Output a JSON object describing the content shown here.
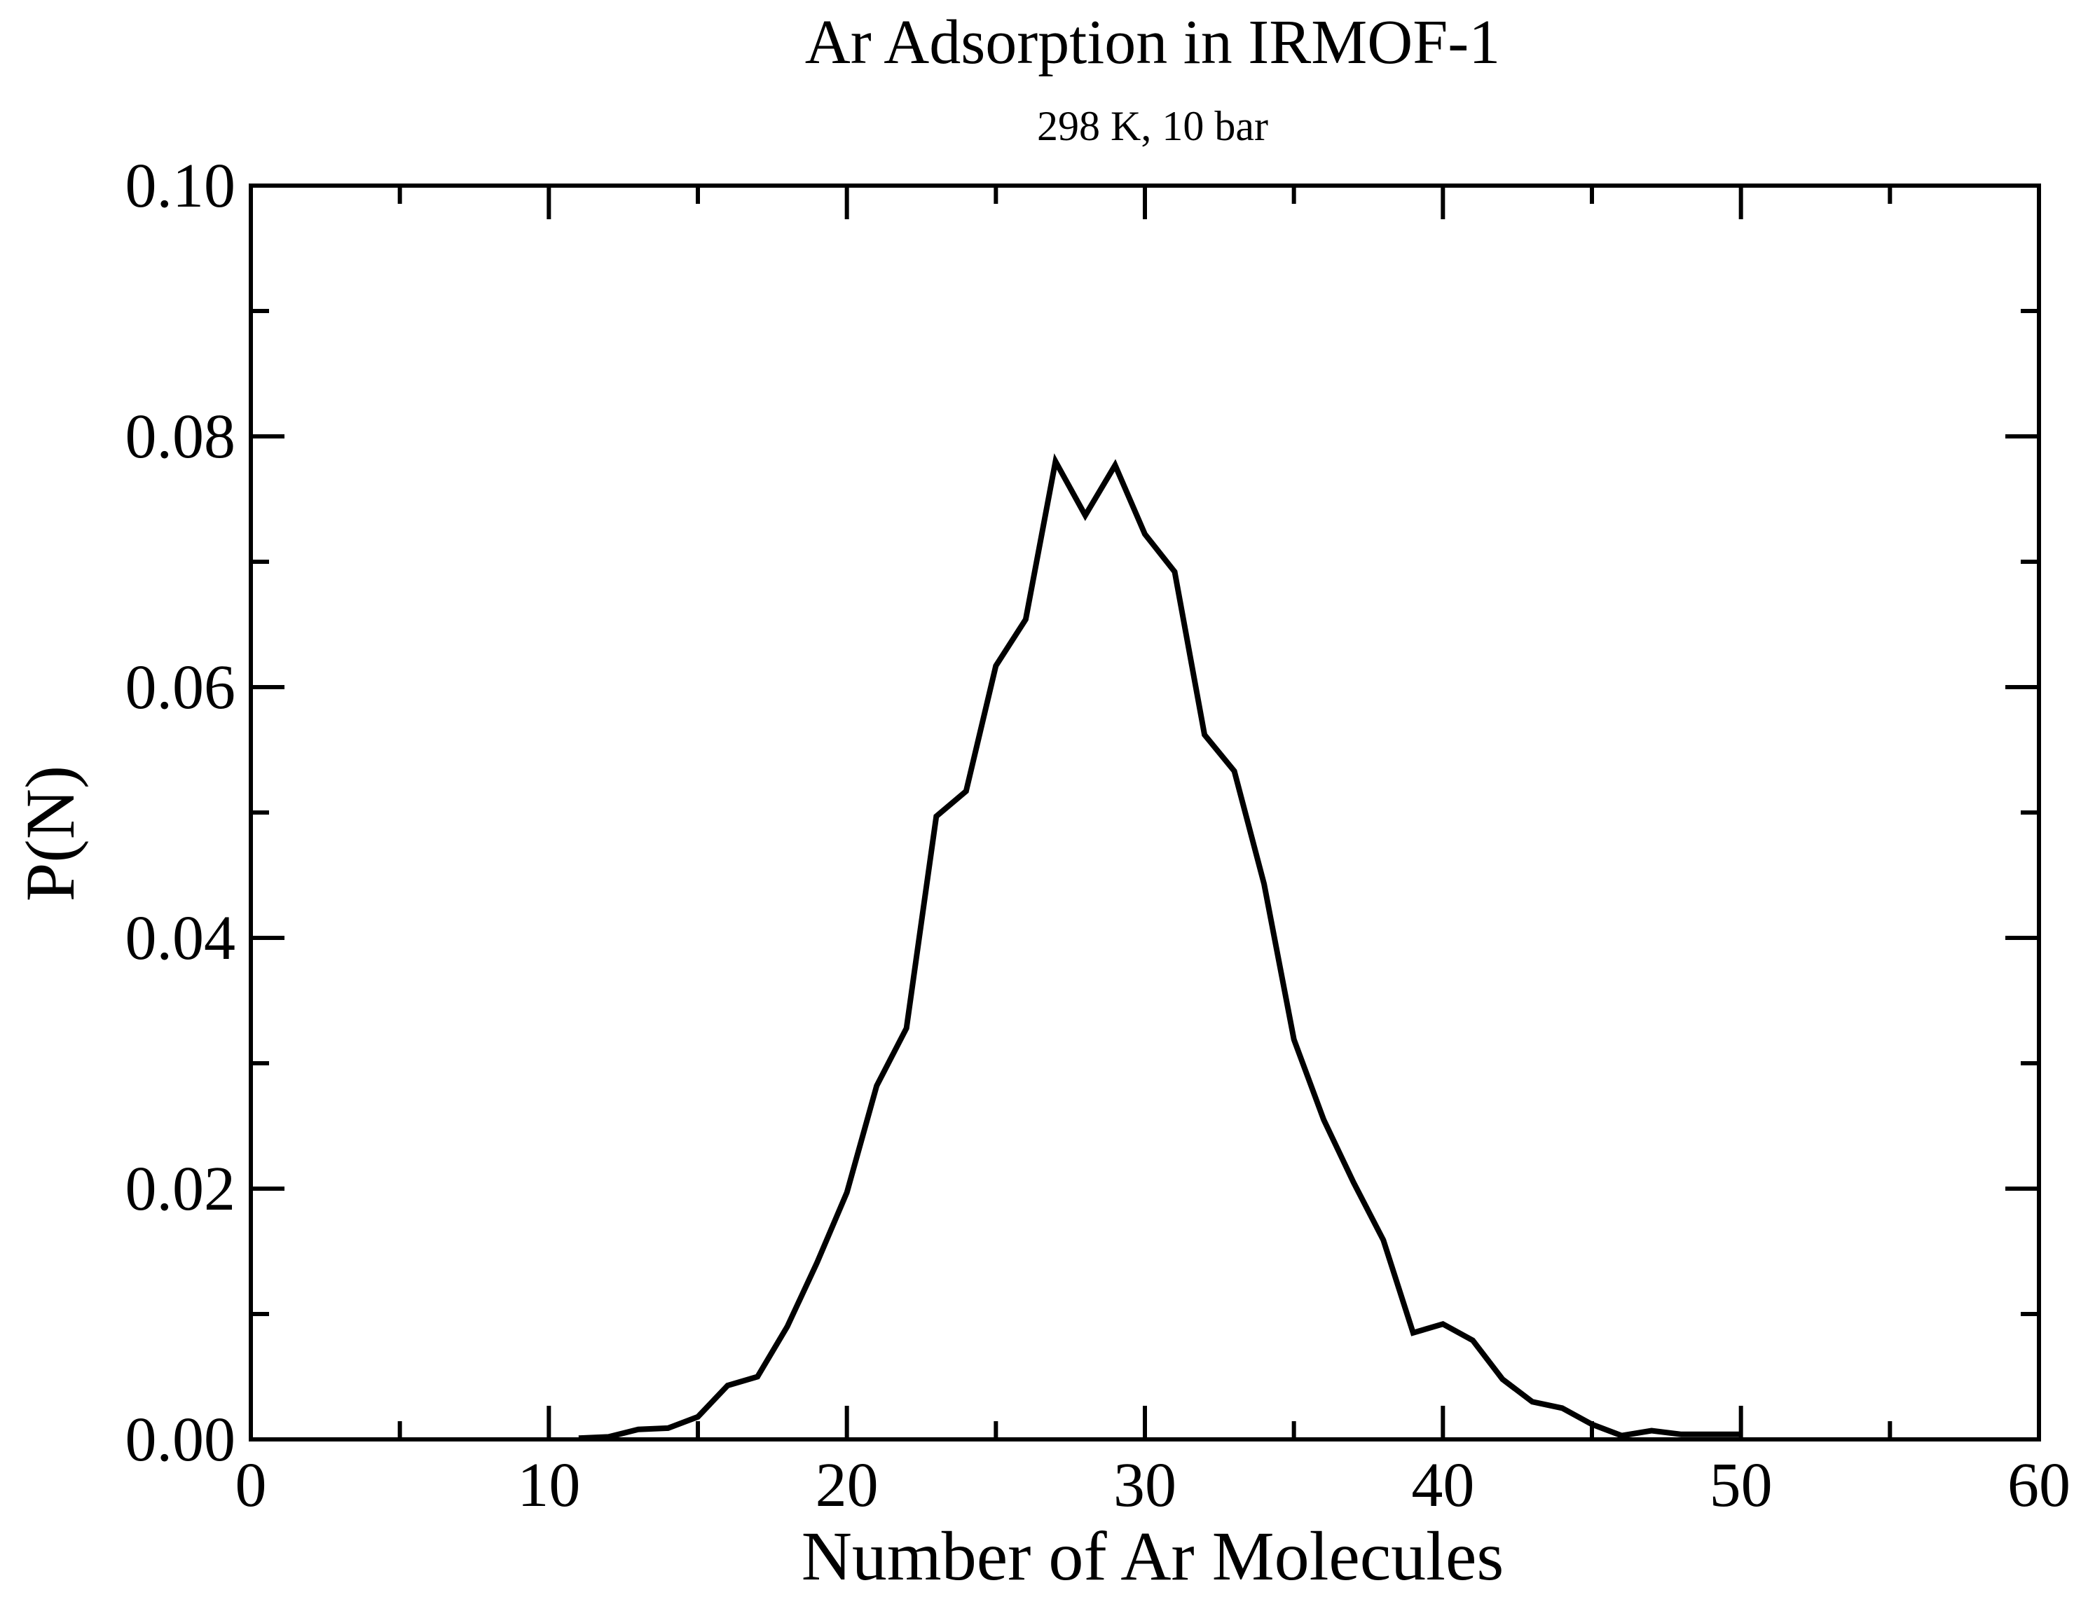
{
  "chart_data": {
    "type": "line",
    "title": "Ar Adsorption in IRMOF-1",
    "subtitle": "298 K, 10 bar",
    "xlabel": "Number of Ar Molecules",
    "ylabel": "P(N)",
    "xlim": [
      0,
      60
    ],
    "ylim": [
      0,
      0.1
    ],
    "x_major_ticks": [
      0,
      10,
      20,
      30,
      40,
      50,
      60
    ],
    "x_minor_ticks": [
      5,
      15,
      25,
      35,
      45,
      55
    ],
    "y_major_ticks": [
      0,
      0.02,
      0.04,
      0.06,
      0.08,
      0.1
    ],
    "y_minor_ticks": [
      0.01,
      0.03,
      0.05,
      0.07,
      0.09
    ],
    "x_tick_labels": [
      "0",
      "10",
      "20",
      "30",
      "40",
      "50",
      "60"
    ],
    "y_tick_labels": [
      "0.00",
      "0.02",
      "0.04",
      "0.06",
      "0.08",
      "0.10"
    ],
    "grid": false,
    "legend": "none",
    "line_color": "#000000",
    "series": [
      {
        "x": [
          11,
          12,
          13,
          14,
          15,
          16,
          17,
          18,
          19,
          20,
          21,
          22,
          23,
          24,
          25,
          26,
          27,
          28,
          29,
          30,
          31,
          32,
          33,
          34,
          35,
          36,
          37,
          38,
          39,
          40,
          41,
          42,
          43,
          44,
          45,
          46,
          47,
          48,
          49,
          50
        ],
        "y": [
          0.0001,
          0.0002,
          0.0008,
          0.0009,
          0.0018,
          0.0043,
          0.005,
          0.009,
          0.0141,
          0.0197,
          0.0282,
          0.0328,
          0.0497,
          0.0517,
          0.0617,
          0.0654,
          0.078,
          0.0737,
          0.0777,
          0.0722,
          0.0692,
          0.0562,
          0.0533,
          0.0443,
          0.0319,
          0.0255,
          0.0205,
          0.0159,
          0.0085,
          0.0092,
          0.0079,
          0.0048,
          0.003,
          0.0025,
          0.0012,
          0.0003,
          0.0007,
          0.0004,
          0.0004,
          0.0004
        ]
      }
    ]
  }
}
